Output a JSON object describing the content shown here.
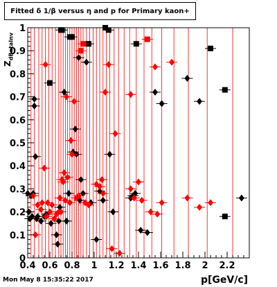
{
  "header": {
    "title": "Fitted δ 1/β versus η and p for Primary kaon+"
  },
  "footer": {
    "timestamp": "Mon May  8 15:35:22 2017"
  },
  "colors": {
    "black_series": "#000000",
    "red_series": "#ff0000",
    "axis": "#000000"
  },
  "chart_data": {
    "type": "scatter",
    "title": "Fitted δ 1/β versus η and p for Primary kaon+",
    "xlabel": "p[GeV/c]",
    "ylabel": "Z",
    "ylabel_sub": "dBetaInv",
    "xlim": [
      0.4,
      2.4
    ],
    "ylim": [
      0,
      1
    ],
    "xticks": [
      "0.4",
      "0.6",
      "0.8",
      "1",
      "1.2",
      "1.4",
      "1.6",
      "1.8",
      "2",
      "2.2"
    ],
    "yticks": [
      "0",
      "0.1",
      "0.2",
      "0.3",
      "0.4",
      "0.5",
      "0.6",
      "0.7",
      "0.8",
      "0.9",
      "1"
    ],
    "red_vertical_lines_x": [
      0.43,
      0.46,
      0.5,
      0.53,
      0.56,
      0.59,
      0.62,
      0.65,
      0.68,
      0.7,
      0.72,
      0.74,
      0.76,
      0.78,
      0.8,
      0.82,
      0.84,
      0.86,
      0.88,
      0.9,
      0.93,
      0.96,
      0.99,
      1.02,
      1.05,
      1.08,
      1.11,
      1.14,
      1.18,
      1.22,
      1.27,
      1.32,
      1.38,
      1.45,
      1.52,
      1.61,
      1.72,
      1.85,
      2.02,
      2.25
    ],
    "series": [
      {
        "color": "#000000",
        "points": [
          [
            0.4,
            0.28
          ],
          [
            0.41,
            0.2
          ],
          [
            0.42,
            0.17
          ],
          [
            0.43,
            0.27
          ],
          [
            0.44,
            0.18
          ],
          [
            0.45,
            0.28
          ],
          [
            0.46,
            0.66
          ],
          [
            0.46,
            0.69
          ],
          [
            0.47,
            0.44
          ],
          [
            0.48,
            0.17
          ],
          [
            0.49,
            0.18
          ],
          [
            0.52,
            0.16
          ],
          [
            0.55,
            0.18
          ],
          [
            0.57,
            0.19
          ],
          [
            0.6,
            0.76
          ],
          [
            0.61,
            0.15
          ],
          [
            0.64,
            0.17
          ],
          [
            0.66,
            0.1
          ],
          [
            0.67,
            0.06
          ],
          [
            0.68,
            0.16
          ],
          [
            0.69,
            0.22
          ],
          [
            0.7,
            0.99
          ],
          [
            0.71,
            0.99
          ],
          [
            0.73,
            0.72
          ],
          [
            0.75,
            0.16
          ],
          [
            0.77,
            0.28
          ],
          [
            0.78,
            0.96
          ],
          [
            0.8,
            0.96
          ],
          [
            0.81,
            0.46
          ],
          [
            0.83,
            0.56
          ],
          [
            0.84,
            0.45
          ],
          [
            0.86,
            0.87
          ],
          [
            0.87,
            0.25
          ],
          [
            0.88,
            0.34
          ],
          [
            0.9,
            0.28
          ],
          [
            0.93,
            0.85
          ],
          [
            0.95,
            0.93
          ],
          [
            0.97,
            0.24
          ],
          [
            1.02,
            0.08
          ],
          [
            1.05,
            0.29
          ],
          [
            1.08,
            0.25
          ],
          [
            1.1,
            1.0
          ],
          [
            1.13,
            0.99
          ],
          [
            1.14,
            0.45
          ],
          [
            1.17,
            0.2
          ],
          [
            1.33,
            0.26
          ],
          [
            1.35,
            0.27
          ],
          [
            1.37,
            0.28
          ],
          [
            1.38,
            0.93
          ],
          [
            1.42,
            0.12
          ],
          [
            1.48,
            0.11
          ],
          [
            1.55,
            0.72
          ],
          [
            1.61,
            0.67
          ],
          [
            1.84,
            0.78
          ],
          [
            1.95,
            0.68
          ],
          [
            2.05,
            0.91
          ],
          [
            2.18,
            0.18
          ],
          [
            2.18,
            0.73
          ],
          [
            2.33,
            0.26
          ]
        ]
      },
      {
        "color": "#ff0000",
        "points": [
          [
            0.45,
            0.27
          ],
          [
            0.47,
            0.1
          ],
          [
            0.49,
            0.23
          ],
          [
            0.52,
            0.21
          ],
          [
            0.53,
            0.24
          ],
          [
            0.55,
            0.39
          ],
          [
            0.56,
            0.84
          ],
          [
            0.57,
            0.18
          ],
          [
            0.58,
            0.24
          ],
          [
            0.6,
            0.2
          ],
          [
            0.62,
            0.23
          ],
          [
            0.64,
            0.17
          ],
          [
            0.66,
            0.19
          ],
          [
            0.68,
            0.2
          ],
          [
            0.69,
            0.26
          ],
          [
            0.7,
            0.2
          ],
          [
            0.71,
            0.34
          ],
          [
            0.72,
            0.33
          ],
          [
            0.73,
            0.37
          ],
          [
            0.74,
            0.25
          ],
          [
            0.75,
            0.7
          ],
          [
            0.76,
            0.35
          ],
          [
            0.78,
            0.24
          ],
          [
            0.79,
            0.51
          ],
          [
            0.8,
            0.45
          ],
          [
            0.82,
            0.68
          ],
          [
            0.84,
            0.26
          ],
          [
            0.86,
            0.27
          ],
          [
            0.88,
            0.9
          ],
          [
            0.9,
            0.93
          ],
          [
            0.92,
            0.24
          ],
          [
            0.95,
            0.23
          ],
          [
            1.02,
            0.32
          ],
          [
            1.05,
            0.31
          ],
          [
            1.07,
            0.34
          ],
          [
            1.08,
            0.28
          ],
          [
            1.1,
            0.72
          ],
          [
            1.13,
            0.84
          ],
          [
            1.16,
            0.04
          ],
          [
            1.19,
            0.54
          ],
          [
            1.23,
            0.02
          ],
          [
            1.33,
            0.71
          ],
          [
            1.33,
            0.3
          ],
          [
            1.36,
            0.26
          ],
          [
            1.4,
            0.33
          ],
          [
            1.43,
            0.25
          ],
          [
            1.48,
            0.95
          ],
          [
            1.51,
            0.2
          ],
          [
            1.55,
            0.83
          ],
          [
            1.57,
            0.19
          ],
          [
            1.61,
            0.24
          ],
          [
            1.7,
            0.85
          ],
          [
            1.84,
            0.26
          ],
          [
            1.95,
            0.22
          ],
          [
            2.05,
            0.24
          ]
        ]
      }
    ]
  }
}
